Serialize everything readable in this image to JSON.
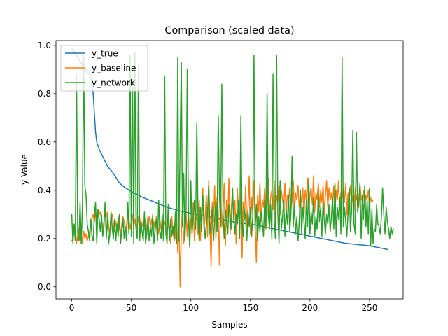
{
  "chart_data": {
    "type": "line",
    "title": "Comparison (scaled data)",
    "xlabel": "Samples",
    "ylabel": "y Value",
    "xlim": [
      -13.25,
      278.25
    ],
    "ylim": [
      -0.05,
      1.02
    ],
    "xticks": [
      0,
      50,
      100,
      150,
      200,
      250
    ],
    "yticks": [
      0.0,
      0.2,
      0.4,
      0.6,
      0.8,
      1.0
    ],
    "ytick_labels": [
      "0.0",
      "0.2",
      "0.4",
      "0.6",
      "0.8",
      "1.0"
    ],
    "legend_position": "top-left",
    "grid": false,
    "x_count": 266,
    "series": [
      {
        "name": "y_true",
        "color": "#1f77b4",
        "keypoints": [
          [
            0,
            0.99
          ],
          [
            5,
            0.95
          ],
          [
            10,
            0.91
          ],
          [
            15,
            0.88
          ],
          [
            17,
            0.85
          ],
          [
            18,
            0.8
          ],
          [
            19,
            0.72
          ],
          [
            20,
            0.64
          ],
          [
            21,
            0.6
          ],
          [
            23,
            0.57
          ],
          [
            26,
            0.54
          ],
          [
            30,
            0.5
          ],
          [
            35,
            0.47
          ],
          [
            40,
            0.43
          ],
          [
            45,
            0.41
          ],
          [
            50,
            0.395
          ],
          [
            60,
            0.37
          ],
          [
            70,
            0.35
          ],
          [
            80,
            0.33
          ],
          [
            90,
            0.315
          ],
          [
            100,
            0.305
          ],
          [
            110,
            0.295
          ],
          [
            120,
            0.285
          ],
          [
            130,
            0.275
          ],
          [
            140,
            0.265
          ],
          [
            150,
            0.26
          ],
          [
            160,
            0.25
          ],
          [
            170,
            0.24
          ],
          [
            180,
            0.23
          ],
          [
            190,
            0.22
          ],
          [
            200,
            0.21
          ],
          [
            210,
            0.2
          ],
          [
            220,
            0.19
          ],
          [
            230,
            0.18
          ],
          [
            240,
            0.175
          ],
          [
            250,
            0.17
          ],
          [
            260,
            0.16
          ],
          [
            265,
            0.155
          ]
        ]
      },
      {
        "name": "y_baseline",
        "color": "#ff7f0e",
        "values": [
          0.19,
          0.2,
          0.23,
          0.26,
          0.18,
          0.21,
          0.24,
          0.19,
          0.22,
          0.18,
          0.23,
          0.2,
          0.22,
          0.19,
          0.21,
          0.23,
          0.25,
          0.28,
          0.3,
          0.27,
          0.31,
          0.29,
          0.32,
          0.3,
          0.31,
          0.28,
          0.24,
          0.27,
          0.33,
          0.29,
          0.31,
          0.25,
          0.22,
          0.28,
          0.3,
          0.26,
          0.23,
          0.27,
          0.24,
          0.29,
          0.25,
          0.21,
          0.26,
          0.29,
          0.27,
          0.23,
          0.25,
          0.31,
          0.28,
          0.24,
          0.27,
          0.3,
          0.25,
          0.28,
          0.24,
          0.26,
          0.29,
          0.22,
          0.28,
          0.25,
          0.27,
          0.24,
          0.28,
          0.23,
          0.26,
          0.29,
          0.25,
          0.28,
          0.24,
          0.27,
          0.23,
          0.29,
          0.25,
          0.22,
          0.28,
          0.24,
          0.26,
          0.23,
          0.27,
          0.25,
          0.21,
          0.28,
          0.24,
          0.18,
          0.29,
          0.22,
          0.26,
          0.2,
          0.3,
          0.14,
          0.28,
          0.0,
          0.22,
          0.34,
          0.18,
          0.26,
          0.3,
          0.21,
          0.33,
          0.16,
          0.28,
          0.23,
          0.35,
          0.19,
          0.27,
          0.3,
          0.22,
          0.36,
          0.19,
          0.31,
          0.41,
          0.24,
          0.29,
          0.38,
          0.21,
          0.44,
          0.26,
          0.08,
          0.35,
          0.27,
          0.42,
          0.2,
          0.37,
          0.31,
          0.09,
          0.4,
          0.25,
          0.32,
          0.43,
          0.17,
          0.36,
          0.29,
          0.45,
          0.22,
          0.33,
          0.4,
          0.27,
          0.36,
          0.18,
          0.41,
          0.3,
          0.24,
          0.39,
          0.12,
          0.35,
          0.28,
          0.42,
          0.25,
          0.33,
          0.46,
          0.22,
          0.37,
          0.3,
          0.44,
          0.26,
          0.1,
          0.38,
          0.31,
          0.43,
          0.27,
          0.36,
          0.33,
          0.41,
          0.24,
          0.35,
          0.45,
          0.29,
          0.37,
          0.4,
          0.32,
          0.44,
          0.28,
          0.38,
          0.35,
          0.42,
          0.3,
          0.4,
          0.36,
          0.33,
          0.43,
          0.3,
          0.38,
          0.35,
          0.41,
          0.32,
          0.37,
          0.44,
          0.31,
          0.39,
          0.36,
          0.42,
          0.33,
          0.38,
          0.35,
          0.41,
          0.29,
          0.4,
          0.36,
          0.45,
          0.32,
          0.38,
          0.41,
          0.34,
          0.46,
          0.31,
          0.39,
          0.36,
          0.43,
          0.33,
          0.4,
          0.35,
          0.42,
          0.3,
          0.38,
          0.44,
          0.33,
          0.41,
          0.36,
          0.39,
          0.34,
          0.42,
          0.31,
          0.4,
          0.36,
          0.44,
          0.32,
          0.39,
          0.37,
          0.41,
          0.35,
          0.43,
          0.3,
          0.39,
          0.36,
          0.42,
          0.34,
          0.38,
          0.31,
          0.41,
          0.36,
          0.39,
          0.33,
          0.42,
          0.37,
          0.35,
          0.4,
          0.33,
          0.38,
          0.36,
          0.4,
          0.34,
          0.37,
          0.35,
          0.36
        ]
      },
      {
        "name": "y_network",
        "color": "#2ca02c",
        "values": [
          0.3,
          0.18,
          0.26,
          0.19,
          0.88,
          0.22,
          0.19,
          0.35,
          0.18,
          0.34,
          0.96,
          0.42,
          0.38,
          0.26,
          0.23,
          0.19,
          0.28,
          0.21,
          0.19,
          0.3,
          0.35,
          0.18,
          0.32,
          0.28,
          0.23,
          0.3,
          0.21,
          0.25,
          0.35,
          0.2,
          0.29,
          0.18,
          0.22,
          0.31,
          0.24,
          0.2,
          0.28,
          0.19,
          0.26,
          0.21,
          0.3,
          0.18,
          0.23,
          0.28,
          0.2,
          0.25,
          0.19,
          0.35,
          0.22,
          0.96,
          0.21,
          0.86,
          0.18,
          0.97,
          0.24,
          0.2,
          0.92,
          0.19,
          0.27,
          0.23,
          0.19,
          0.31,
          0.18,
          0.22,
          0.29,
          0.19,
          0.25,
          0.21,
          0.3,
          0.18,
          0.24,
          0.28,
          0.19,
          0.36,
          0.23,
          0.2,
          0.3,
          0.19,
          0.87,
          0.22,
          0.18,
          0.34,
          0.19,
          0.28,
          0.21,
          0.25,
          0.19,
          0.31,
          0.18,
          0.95,
          0.19,
          0.6,
          0.93,
          0.25,
          0.47,
          0.19,
          0.32,
          0.9,
          0.28,
          0.17,
          0.44,
          0.22,
          0.29,
          0.36,
          0.24,
          0.68,
          0.3,
          0.19,
          0.33,
          0.23,
          0.38,
          0.27,
          0.2,
          0.26,
          0.31,
          0.42,
          0.22,
          0.27,
          0.33,
          0.19,
          0.28,
          0.35,
          0.23,
          0.71,
          0.38,
          0.25,
          0.84,
          0.31,
          0.2,
          0.32,
          0.27,
          0.22,
          0.34,
          0.29,
          0.24,
          0.41,
          0.28,
          0.22,
          0.3,
          0.26,
          0.36,
          0.2,
          0.71,
          0.25,
          0.21,
          0.32,
          0.28,
          0.19,
          0.31,
          0.25,
          0.33,
          0.21,
          0.29,
          0.96,
          0.24,
          0.34,
          0.19,
          0.29,
          0.23,
          0.31,
          0.27,
          0.21,
          0.36,
          0.25,
          0.8,
          0.3,
          0.24,
          0.34,
          0.2,
          0.88,
          0.28,
          0.2,
          0.96,
          0.31,
          0.18,
          0.44,
          0.24,
          0.29,
          0.36,
          0.21,
          0.32,
          0.26,
          0.38,
          0.23,
          0.3,
          0.54,
          0.25,
          0.34,
          0.22,
          0.29,
          0.19,
          0.27,
          0.4,
          0.22,
          0.33,
          0.27,
          0.2,
          0.36,
          0.25,
          0.45,
          0.22,
          0.31,
          0.26,
          0.37,
          0.21,
          0.29,
          0.24,
          0.39,
          0.27,
          0.33,
          0.21,
          0.35,
          0.28,
          0.22,
          0.3,
          0.26,
          0.34,
          0.23,
          0.29,
          0.37,
          0.24,
          0.43,
          0.21,
          0.33,
          0.28,
          0.37,
          0.22,
          0.95,
          0.25,
          0.33,
          0.27,
          0.21,
          0.31,
          0.41,
          0.23,
          0.32,
          0.65,
          0.26,
          0.22,
          0.64,
          0.31,
          0.35,
          0.43,
          0.2,
          0.38,
          0.28,
          0.42,
          0.25,
          0.36,
          0.22,
          0.41,
          0.17,
          0.32,
          0.18,
          0.24,
          0.23,
          0.34,
          0.26,
          0.25,
          0.22,
          0.29,
          0.41,
          0.3,
          0.22,
          0.33,
          0.27,
          0.24,
          0.2,
          0.25,
          0.22,
          0.24
        ]
      }
    ]
  }
}
